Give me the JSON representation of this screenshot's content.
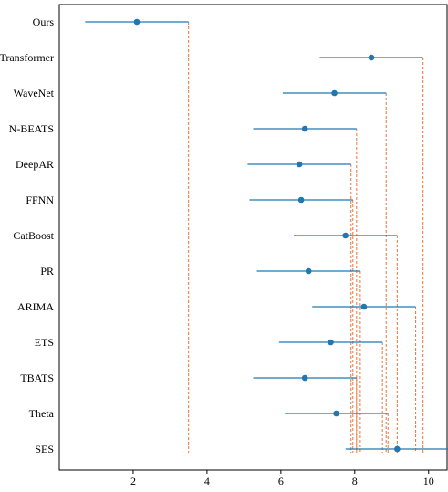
{
  "chart_data": {
    "type": "scatter",
    "subtype": "critical-difference-interval",
    "title": "",
    "xlabel": "",
    "ylabel": "",
    "xlim": [
      0.0,
      10.5
    ],
    "xticks": [
      2,
      4,
      6,
      8,
      10
    ],
    "grid": false,
    "legend": "none",
    "colors": {
      "interval": "#1f77b4",
      "point": "#1f77b4",
      "critical_line": "#e8743b"
    },
    "methods": [
      {
        "name": "Ours",
        "mean": 2.1,
        "low": 0.7,
        "high": 3.5
      },
      {
        "name": "Transformer",
        "mean": 8.45,
        "low": 7.05,
        "high": 9.85
      },
      {
        "name": "WaveNet",
        "mean": 7.45,
        "low": 6.05,
        "high": 8.85
      },
      {
        "name": "N-BEATS",
        "mean": 6.65,
        "low": 5.25,
        "high": 8.05
      },
      {
        "name": "DeepAR",
        "mean": 6.5,
        "low": 5.1,
        "high": 7.9
      },
      {
        "name": "FFNN",
        "mean": 6.55,
        "low": 5.15,
        "high": 7.95
      },
      {
        "name": "CatBoost",
        "mean": 7.75,
        "low": 6.35,
        "high": 9.15
      },
      {
        "name": "PR",
        "mean": 6.75,
        "low": 5.35,
        "high": 8.15
      },
      {
        "name": "ARIMA",
        "mean": 8.25,
        "low": 6.85,
        "high": 9.65
      },
      {
        "name": "ETS",
        "mean": 7.35,
        "low": 5.95,
        "high": 8.75
      },
      {
        "name": "TBATS",
        "mean": 6.65,
        "low": 5.25,
        "high": 8.05
      },
      {
        "name": "Theta",
        "mean": 7.5,
        "low": 6.1,
        "high": 8.9
      },
      {
        "name": "SES",
        "mean": 9.15,
        "low": 7.75,
        "high": 10.55
      }
    ]
  }
}
